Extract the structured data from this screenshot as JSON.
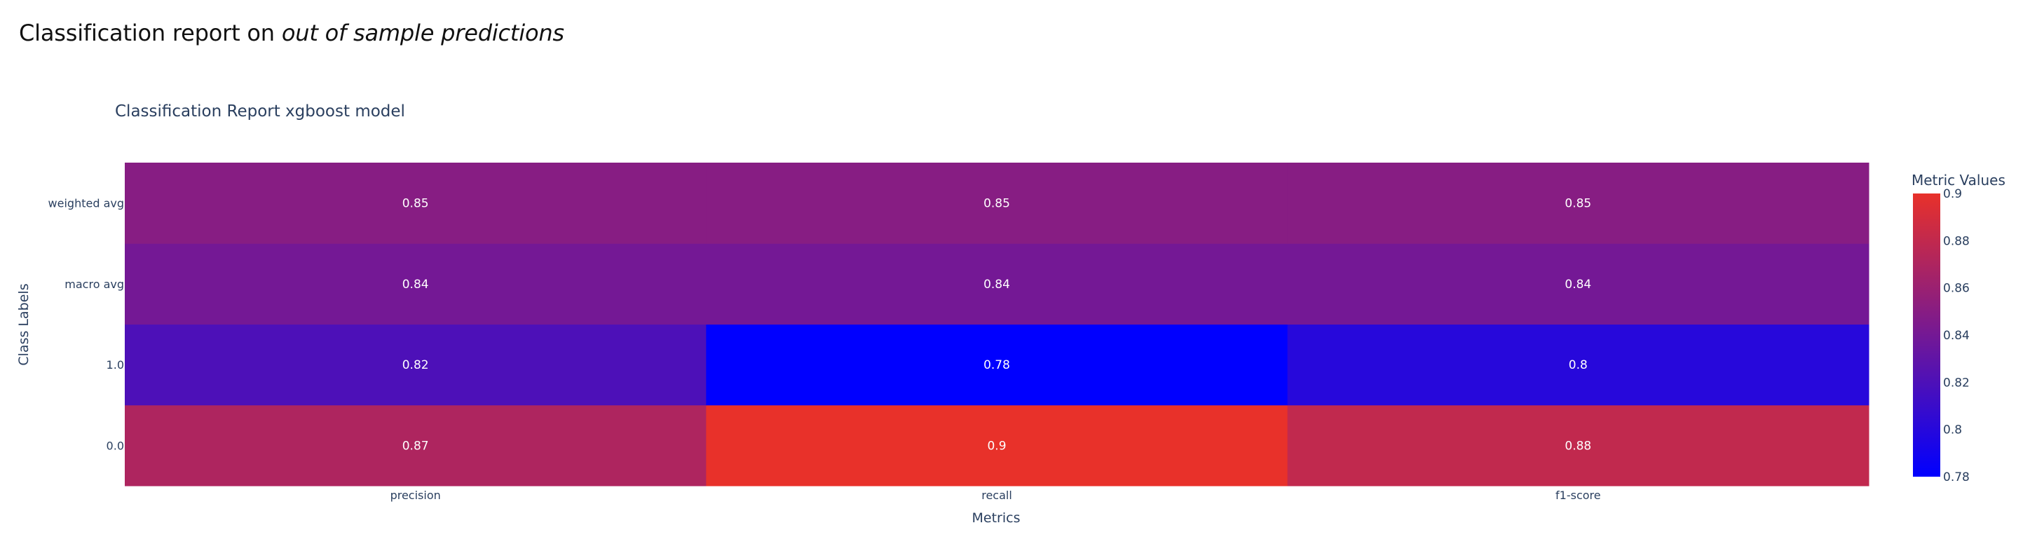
{
  "page": {
    "heading_prefix": "Classification report on ",
    "heading_emphasis": "out of sample predictions"
  },
  "chart_data": {
    "type": "heatmap",
    "title": "Classification Report xgboost model",
    "xlabel": "Metrics",
    "ylabel": "Class Labels",
    "x": [
      "precision",
      "recall",
      "f1-score"
    ],
    "y": [
      "0.0",
      "1.0",
      "macro avg",
      "weighted avg"
    ],
    "z": [
      [
        0.87,
        0.9,
        0.88
      ],
      [
        0.82,
        0.78,
        0.8
      ],
      [
        0.84,
        0.84,
        0.84
      ],
      [
        0.85,
        0.85,
        0.85
      ]
    ],
    "text": [
      [
        "0.87",
        "0.9",
        "0.88"
      ],
      [
        "0.82",
        "0.78",
        "0.8"
      ],
      [
        "0.84",
        "0.84",
        "0.84"
      ],
      [
        "0.85",
        "0.85",
        "0.85"
      ]
    ],
    "zmin": 0.78,
    "zmax": 0.9,
    "colorscale": [
      "#0000ff",
      "#e8312a"
    ],
    "colorbar": {
      "title": "Metric Values",
      "ticks": [
        "0.78",
        "0.8",
        "0.82",
        "0.84",
        "0.86",
        "0.88",
        "0.9"
      ]
    },
    "cell_text_color": "#ffffff",
    "axis_text_color": "#2a3f5f"
  }
}
